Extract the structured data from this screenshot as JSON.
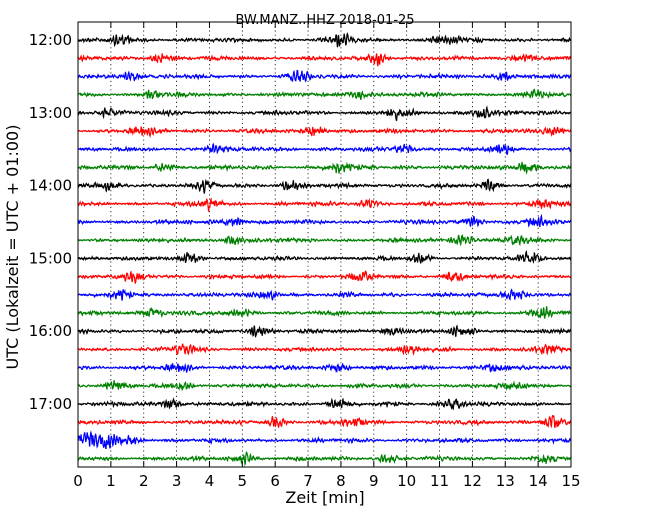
{
  "chart_data": {
    "type": "line",
    "title": "BW.MANZ..HHZ 2018-01-25",
    "xlabel": "Zeit  [min]",
    "ylabel": "UTC (Lokalzeit = UTC + 01:00)",
    "xlim": [
      0,
      15
    ],
    "xticks": [
      0,
      1,
      2,
      3,
      4,
      5,
      6,
      7,
      8,
      9,
      10,
      11,
      12,
      13,
      14,
      15
    ],
    "xtick_labels": [
      "0",
      "1",
      "2",
      "3",
      "4",
      "5",
      "6",
      "7",
      "8",
      "9",
      "10",
      "11",
      "12",
      "13",
      "14",
      "15"
    ],
    "xgrid": "dotted",
    "yticks": [
      {
        "label": "12:00",
        "minutes_after_start": 0
      },
      {
        "label": "13:00",
        "minutes_after_start": 60
      },
      {
        "label": "14:00",
        "minutes_after_start": 120
      },
      {
        "label": "15:00",
        "minutes_after_start": 180
      },
      {
        "label": "16:00",
        "minutes_after_start": 240
      },
      {
        "label": "17:00",
        "minutes_after_start": 300
      }
    ],
    "trace_colors": [
      "#000000",
      "#ff0000",
      "#0000ff",
      "#008000"
    ],
    "traces": [
      {
        "start": "12:00",
        "color": "#000000",
        "events": [
          {
            "t": 1.3,
            "a": 1.0
          },
          {
            "t": 8.0,
            "a": 1.2
          },
          {
            "t": 11.2,
            "a": 1.1
          }
        ]
      },
      {
        "start": "12:15",
        "color": "#ff0000",
        "events": [
          {
            "t": 2.5,
            "a": 0.9
          },
          {
            "t": 9.1,
            "a": 1.4
          },
          {
            "t": 13.6,
            "a": 1.0
          }
        ]
      },
      {
        "start": "12:30",
        "color": "#0000ff",
        "events": [
          {
            "t": 1.6,
            "a": 0.9
          },
          {
            "t": 6.7,
            "a": 1.0
          },
          {
            "t": 13.0,
            "a": 0.9
          }
        ]
      },
      {
        "start": "12:45",
        "color": "#008000",
        "events": [
          {
            "t": 2.3,
            "a": 0.8
          },
          {
            "t": 8.5,
            "a": 1.0
          },
          {
            "t": 14.0,
            "a": 0.8
          }
        ]
      },
      {
        "start": "13:00",
        "color": "#000000",
        "events": [
          {
            "t": 0.9,
            "a": 1.0
          },
          {
            "t": 9.6,
            "a": 1.1
          },
          {
            "t": 12.3,
            "a": 1.3
          }
        ]
      },
      {
        "start": "13:15",
        "color": "#ff0000",
        "events": [
          {
            "t": 1.9,
            "a": 1.0
          },
          {
            "t": 7.2,
            "a": 1.1
          },
          {
            "t": 14.5,
            "a": 1.0
          }
        ]
      },
      {
        "start": "13:30",
        "color": "#0000ff",
        "events": [
          {
            "t": 4.2,
            "a": 1.1
          },
          {
            "t": 9.9,
            "a": 0.9
          },
          {
            "t": 12.9,
            "a": 1.0
          }
        ]
      },
      {
        "start": "13:45",
        "color": "#008000",
        "events": [
          {
            "t": 2.6,
            "a": 0.8
          },
          {
            "t": 7.9,
            "a": 1.4
          },
          {
            "t": 13.7,
            "a": 1.3
          }
        ]
      },
      {
        "start": "14:00",
        "color": "#000000",
        "events": [
          {
            "t": 0.9,
            "a": 1.1
          },
          {
            "t": 3.8,
            "a": 1.2
          },
          {
            "t": 6.5,
            "a": 1.0
          },
          {
            "t": 12.6,
            "a": 1.0
          }
        ]
      },
      {
        "start": "14:15",
        "color": "#ff0000",
        "events": [
          {
            "t": 4.0,
            "a": 1.2
          },
          {
            "t": 8.8,
            "a": 1.0
          },
          {
            "t": 14.2,
            "a": 1.0
          }
        ]
      },
      {
        "start": "14:30",
        "color": "#0000ff",
        "events": [
          {
            "t": 4.8,
            "a": 1.0
          },
          {
            "t": 12.0,
            "a": 1.1
          },
          {
            "t": 13.9,
            "a": 1.2
          }
        ]
      },
      {
        "start": "14:45",
        "color": "#008000",
        "events": [
          {
            "t": 4.7,
            "a": 0.9
          },
          {
            "t": 11.7,
            "a": 1.1
          },
          {
            "t": 13.3,
            "a": 0.9
          }
        ]
      },
      {
        "start": "15:00",
        "color": "#000000",
        "events": [
          {
            "t": 3.4,
            "a": 1.0
          },
          {
            "t": 10.4,
            "a": 1.1
          },
          {
            "t": 13.8,
            "a": 1.0
          }
        ]
      },
      {
        "start": "15:15",
        "color": "#ff0000",
        "events": [
          {
            "t": 1.7,
            "a": 1.0
          },
          {
            "t": 8.6,
            "a": 1.0
          },
          {
            "t": 11.4,
            "a": 1.0
          }
        ]
      },
      {
        "start": "15:30",
        "color": "#0000ff",
        "events": [
          {
            "t": 1.3,
            "a": 0.9
          },
          {
            "t": 5.8,
            "a": 0.9
          },
          {
            "t": 13.3,
            "a": 1.2
          }
        ]
      },
      {
        "start": "15:45",
        "color": "#008000",
        "events": [
          {
            "t": 2.3,
            "a": 1.1
          },
          {
            "t": 5.0,
            "a": 0.9
          },
          {
            "t": 14.1,
            "a": 1.5
          }
        ]
      },
      {
        "start": "16:00",
        "color": "#000000",
        "events": [
          {
            "t": 5.5,
            "a": 1.1
          },
          {
            "t": 9.5,
            "a": 1.0
          },
          {
            "t": 11.7,
            "a": 1.0
          }
        ]
      },
      {
        "start": "16:15",
        "color": "#ff0000",
        "events": [
          {
            "t": 3.2,
            "a": 1.0
          },
          {
            "t": 10.1,
            "a": 1.0
          },
          {
            "t": 14.4,
            "a": 0.9
          }
        ]
      },
      {
        "start": "16:30",
        "color": "#0000ff",
        "events": [
          {
            "t": 3.0,
            "a": 0.9
          },
          {
            "t": 7.9,
            "a": 1.0
          },
          {
            "t": 12.7,
            "a": 1.0
          }
        ]
      },
      {
        "start": "16:45",
        "color": "#008000",
        "events": [
          {
            "t": 1.1,
            "a": 1.0
          },
          {
            "t": 3.2,
            "a": 1.0
          },
          {
            "t": 13.3,
            "a": 0.9
          }
        ]
      },
      {
        "start": "17:00",
        "color": "#000000",
        "events": [
          {
            "t": 2.9,
            "a": 1.0
          },
          {
            "t": 7.9,
            "a": 1.1
          },
          {
            "t": 11.5,
            "a": 1.0
          }
        ]
      },
      {
        "start": "17:15",
        "color": "#ff0000",
        "events": [
          {
            "t": 6.0,
            "a": 1.0
          },
          {
            "t": 8.4,
            "a": 1.0
          },
          {
            "t": 14.4,
            "a": 1.6
          }
        ]
      },
      {
        "start": "17:30",
        "color": "#0000ff",
        "events": [
          {
            "t": 0.35,
            "a": 2.2
          },
          {
            "t": 0.9,
            "a": 1.6
          },
          {
            "t": 1.6,
            "a": 1.0
          }
        ]
      },
      {
        "start": "17:45",
        "color": "#008000",
        "events": [
          {
            "t": 5.0,
            "a": 1.0
          },
          {
            "t": 9.4,
            "a": 0.9
          },
          {
            "t": 14.3,
            "a": 1.0
          }
        ]
      }
    ]
  }
}
